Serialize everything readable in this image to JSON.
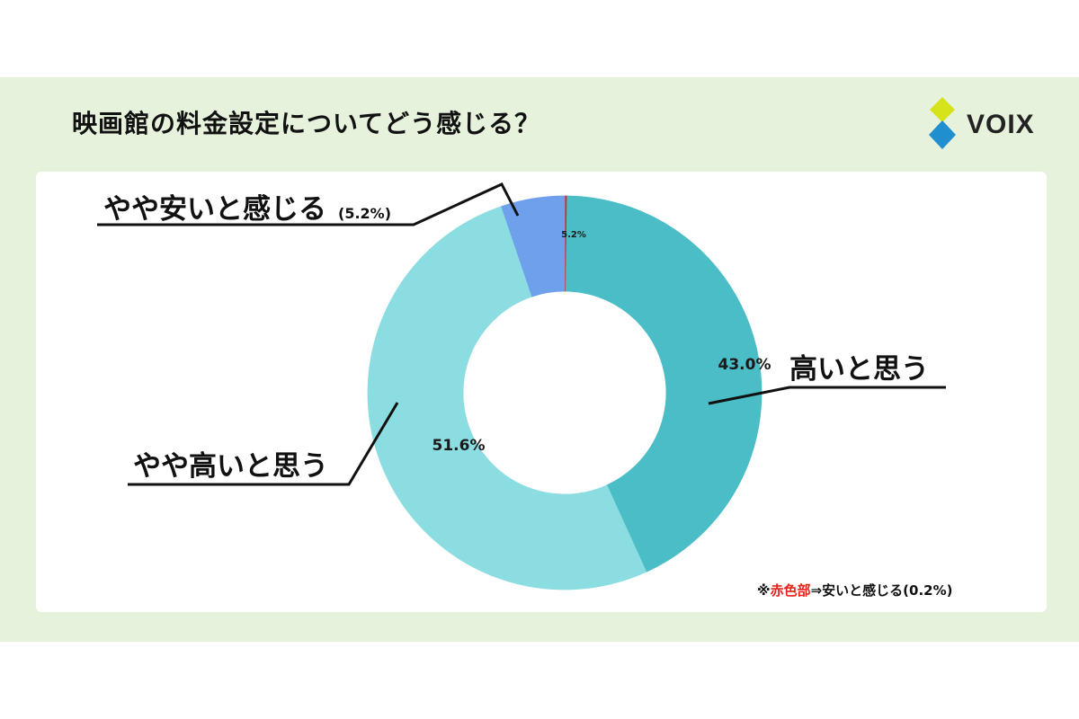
{
  "title": "映画館の料金設定についてどう感じる？",
  "brand": {
    "name": "VOIX",
    "colors": {
      "top": "#d6e21a",
      "bottom": "#1f8fcf"
    }
  },
  "note": {
    "prefix": "※",
    "highlight": "赤色部",
    "rest": "⇒安いと感じる(0.2%)",
    "highlight_color": "#e5241b"
  },
  "chart_data": {
    "type": "pie",
    "subtype": "donut",
    "slices": [
      {
        "label": "安いと感じる",
        "value": 0.2,
        "pct_text": "",
        "callout": "",
        "color": "#e5241b"
      },
      {
        "label": "高いと思う",
        "value": 43.0,
        "pct_text": "43.0%",
        "callout": "高いと思う",
        "color": "#4bbdc6"
      },
      {
        "label": "やや高いと思う",
        "value": 51.6,
        "pct_text": "51.6%",
        "callout": "やや高いと思う",
        "color": "#8cdde2"
      },
      {
        "label": "やや安いと感じる",
        "value": 5.2,
        "pct_text": "5.2%",
        "callout": "やや安いと感じる",
        "callout_suffix": "(5.2%)",
        "color": "#6fa0ec"
      }
    ]
  }
}
